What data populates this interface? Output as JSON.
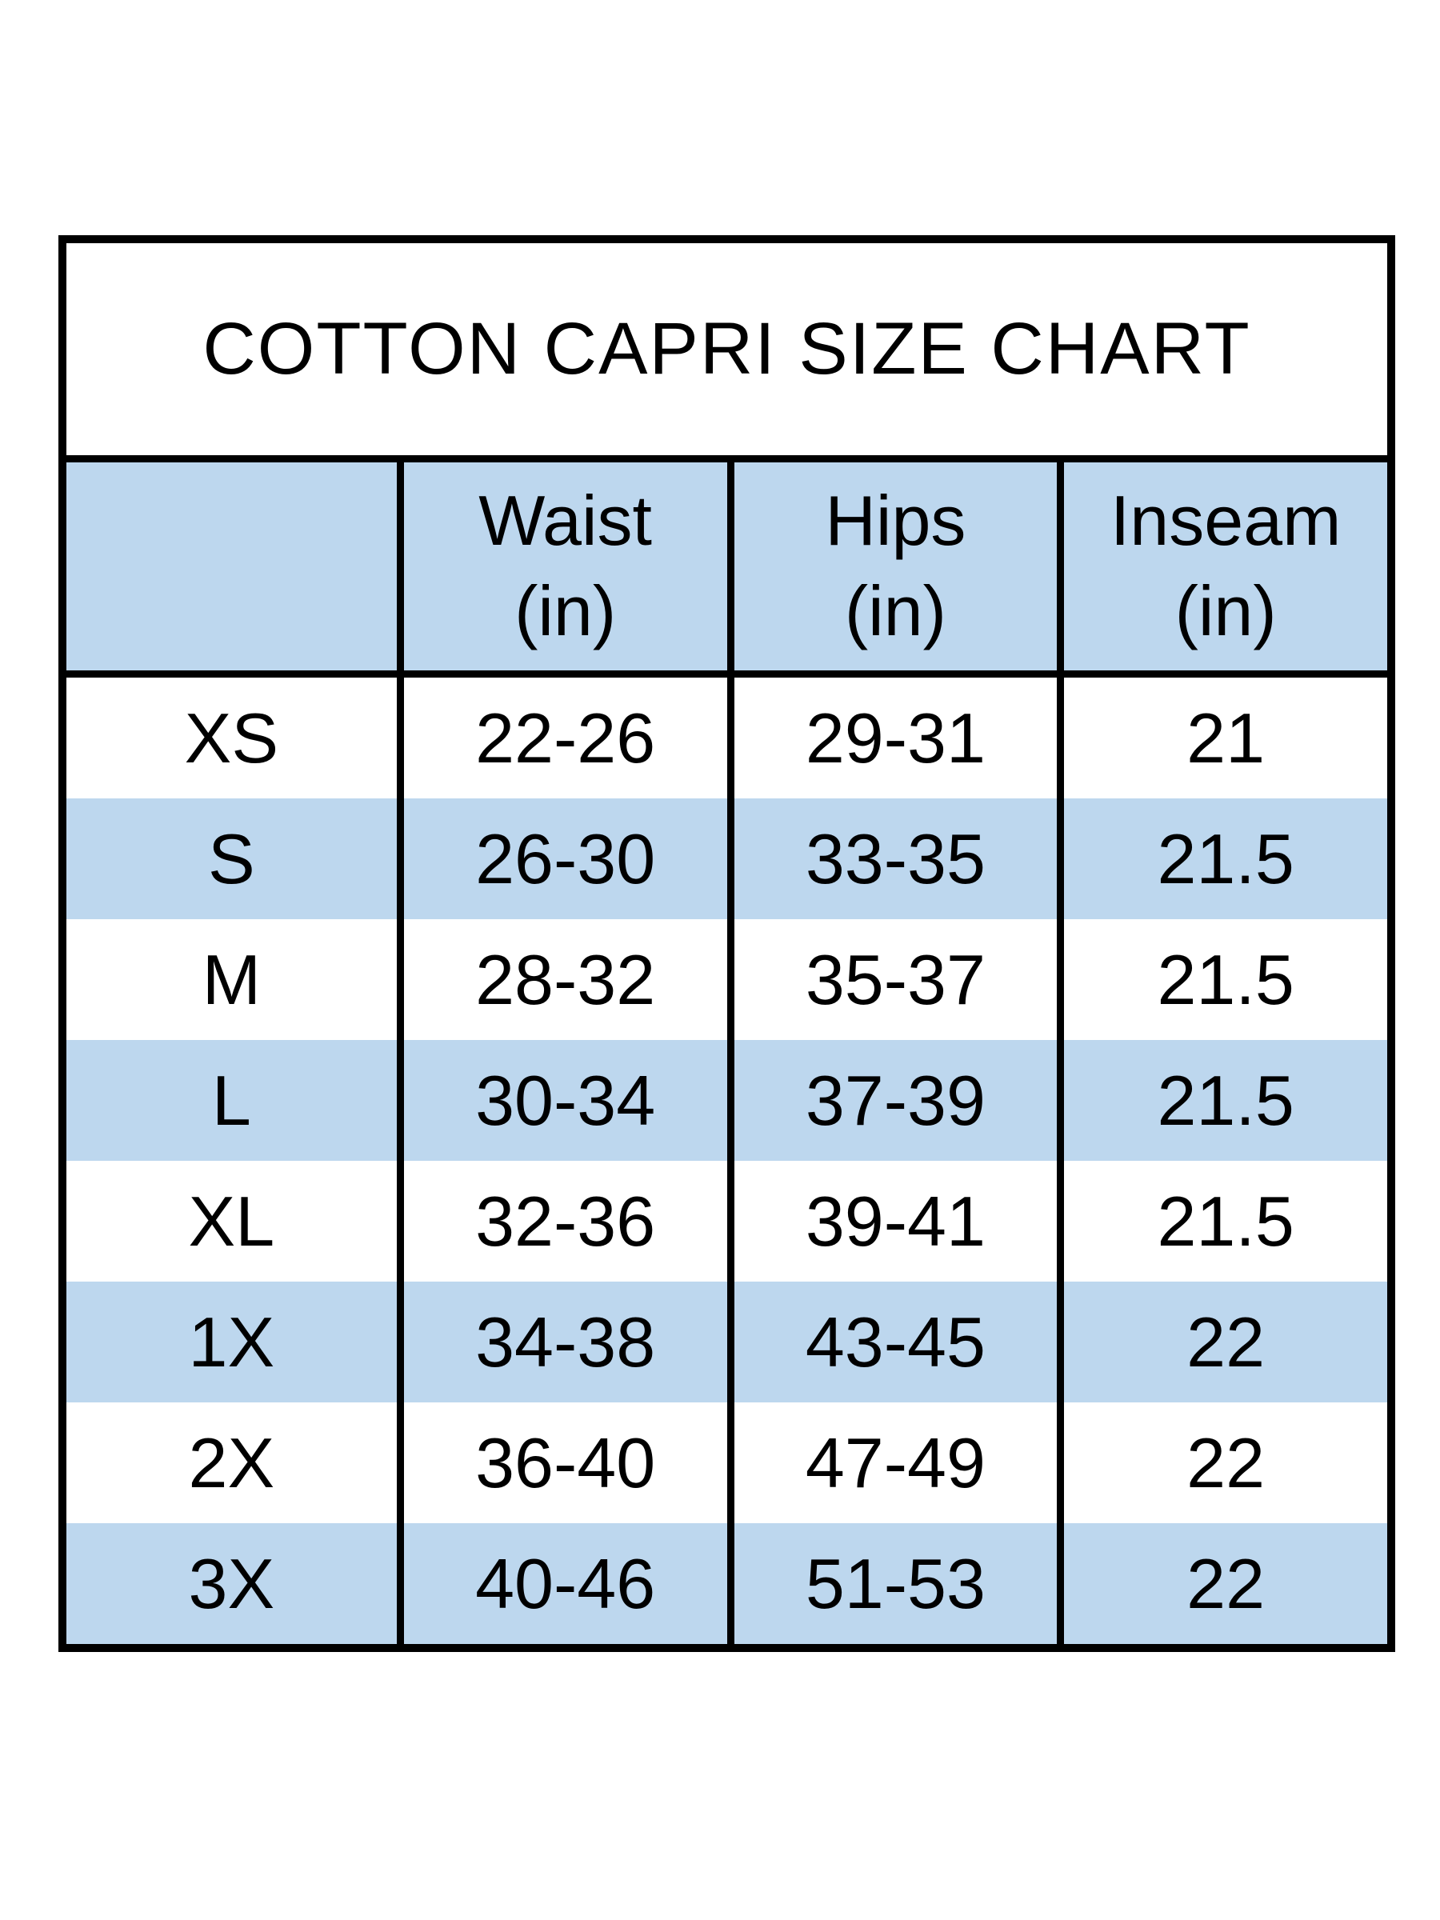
{
  "chart_data": {
    "type": "table",
    "title": "COTTON CAPRI SIZE CHART",
    "columns": [
      "",
      "Waist (in)",
      "Hips (in)",
      "Inseam (in)"
    ],
    "rows": [
      [
        "XS",
        "22-26",
        "29-31",
        "21"
      ],
      [
        "S",
        "26-30",
        "33-35",
        "21.5"
      ],
      [
        "M",
        "28-32",
        "35-37",
        "21.5"
      ],
      [
        "L",
        "30-34",
        "37-39",
        "21.5"
      ],
      [
        "XL",
        "32-36",
        "39-41",
        "21.5"
      ],
      [
        "1X",
        "34-38",
        "43-45",
        "22"
      ],
      [
        "2X",
        "36-40",
        "47-49",
        "22"
      ],
      [
        "3X",
        "40-46",
        "51-53",
        "22"
      ]
    ],
    "layout": {
      "header_background": "#bdd7ee",
      "row_stripe_pattern": [
        "#ffffff",
        "#bdd7ee"
      ],
      "grid": "outer-and-column-borders-only",
      "units": "inches"
    }
  },
  "headers": [
    {
      "line1": "",
      "line2": ""
    },
    {
      "line1": "Waist",
      "line2": "(in)"
    },
    {
      "line1": "Hips",
      "line2": "(in)"
    },
    {
      "line1": "Inseam",
      "line2": "(in)"
    }
  ],
  "colors": {
    "page_bg": "#ffffff",
    "stripe_blue": "#bdd7ee",
    "row_white": "#ffffff",
    "border_black": "#000000",
    "text_black": "#000000"
  }
}
